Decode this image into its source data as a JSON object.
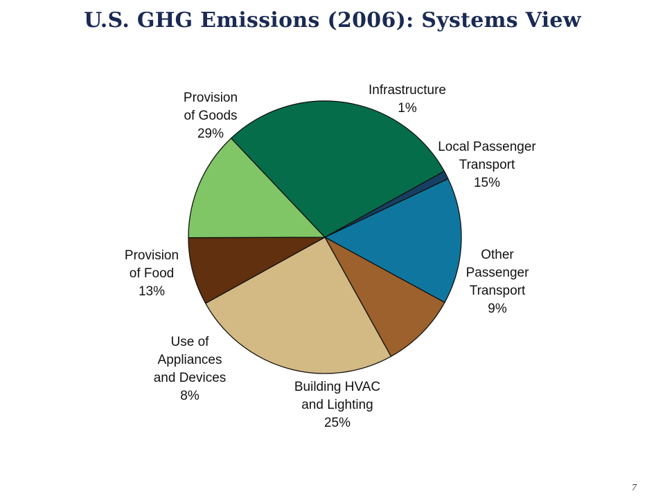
{
  "slide": {
    "title": "U.S. GHG Emissions (2006): Systems View",
    "page_number": "7"
  },
  "chart_data": {
    "type": "pie",
    "title": "U.S. GHG Emissions (2006): Systems View",
    "unit": "%",
    "slices": [
      {
        "label": "Infrastructure",
        "value": 1,
        "color": "#173f63"
      },
      {
        "label": "Local Passenger Transport",
        "value": 15,
        "color": "#0f779f"
      },
      {
        "label": "Other Passenger Transport",
        "value": 9,
        "color": "#9c612c"
      },
      {
        "label": "Building HVAC and Lighting",
        "value": 25,
        "color": "#d3b984"
      },
      {
        "label": "Use of Appliances and Devices",
        "value": 8,
        "color": "#61300f"
      },
      {
        "label": "Provision of Food",
        "value": 13,
        "color": "#80c566"
      },
      {
        "label": "Provision of Goods",
        "value": 29,
        "color": "#066d4a"
      }
    ],
    "labels": [
      {
        "lines": [
          "Infrastructure",
          "1%"
        ]
      },
      {
        "lines": [
          "Local Passenger",
          "Transport",
          "15%"
        ]
      },
      {
        "lines": [
          "Other",
          "Passenger",
          "Transport",
          "9%"
        ]
      },
      {
        "lines": [
          "Building HVAC",
          "and Lighting",
          "25%"
        ]
      },
      {
        "lines": [
          "Use of",
          "Appliances",
          "and Devices",
          "8%"
        ]
      },
      {
        "lines": [
          "Provision",
          "of Food",
          "13%"
        ]
      },
      {
        "lines": [
          "Provision",
          "of Goods",
          "29%"
        ]
      }
    ]
  }
}
